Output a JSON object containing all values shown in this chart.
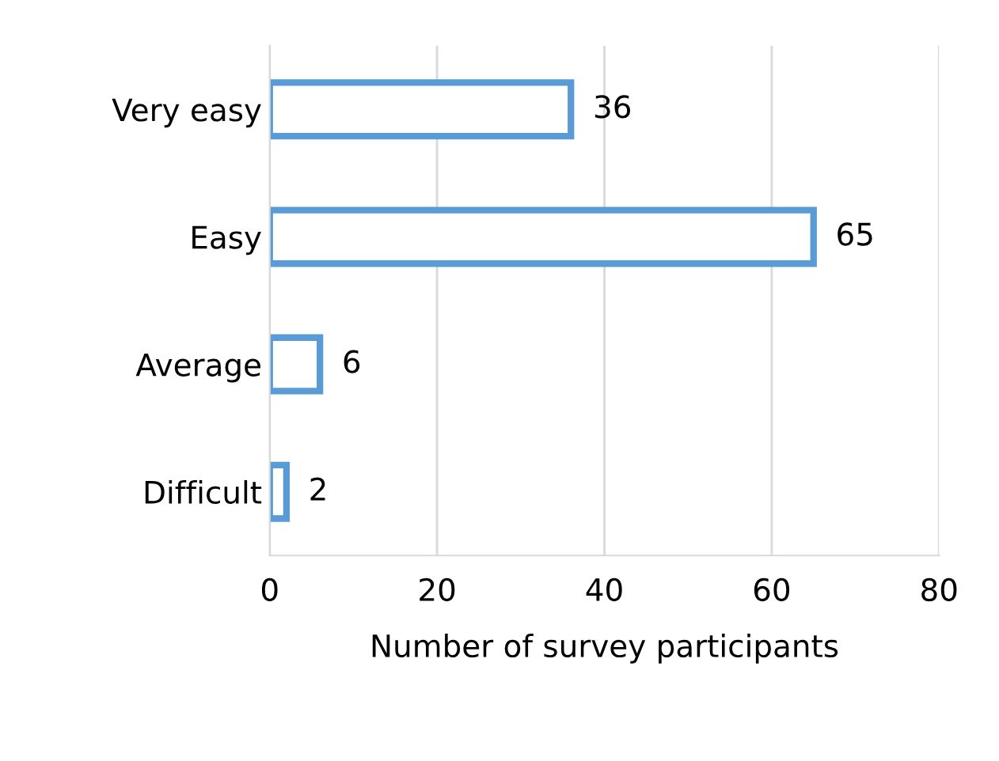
{
  "chart_data": {
    "type": "bar",
    "orientation": "horizontal",
    "categories": [
      "Very easy",
      "Easy",
      "Average",
      "Difficult"
    ],
    "values": [
      36,
      65,
      6,
      2
    ],
    "color": "#5b9bd5",
    "xlim": [
      0,
      80
    ],
    "xticks": [
      0,
      20,
      40,
      60,
      80
    ],
    "xlabel": "Number of survey participants",
    "grid": "x",
    "data_labels": true,
    "legend": false
  }
}
